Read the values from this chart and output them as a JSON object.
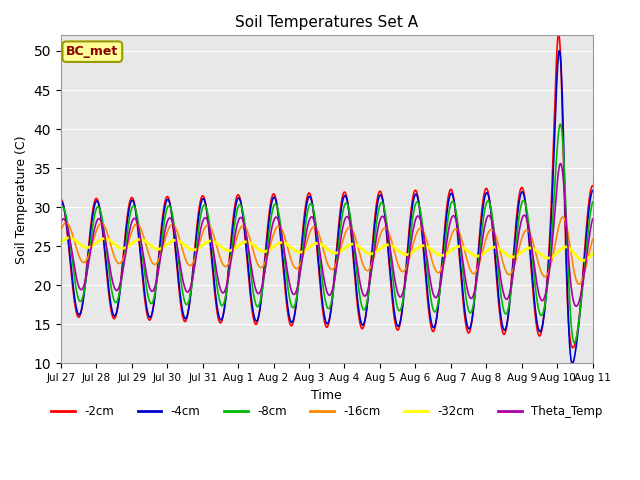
{
  "title": "Soil Temperatures Set A",
  "xlabel": "Time",
  "ylabel": "Soil Temperature (C)",
  "ylim": [
    10,
    52
  ],
  "yticks": [
    10,
    15,
    20,
    25,
    30,
    35,
    40,
    45,
    50
  ],
  "fig_bg_color": "#ffffff",
  "plot_bg_color": "#e8e8e8",
  "annotation_text": "BC_met",
  "annotation_color": "#8B0000",
  "annotation_bg": "#ffff99",
  "line_colors": {
    "-2cm": "#ff0000",
    "-4cm": "#0000cc",
    "-8cm": "#00bb00",
    "-16cm": "#ff8800",
    "-32cm": "#ffff00",
    "Theta_Temp": "#aa00aa"
  },
  "x_tick_labels": [
    "Jul 27",
    "Jul 28",
    "Jul 29",
    "Jul 30",
    "Jul 31",
    "Aug 1",
    "Aug 2",
    "Aug 3",
    "Aug 4",
    "Aug 5",
    "Aug 6",
    "Aug 7",
    "Aug 8",
    "Aug 9",
    "Aug 10",
    "Aug 11"
  ]
}
